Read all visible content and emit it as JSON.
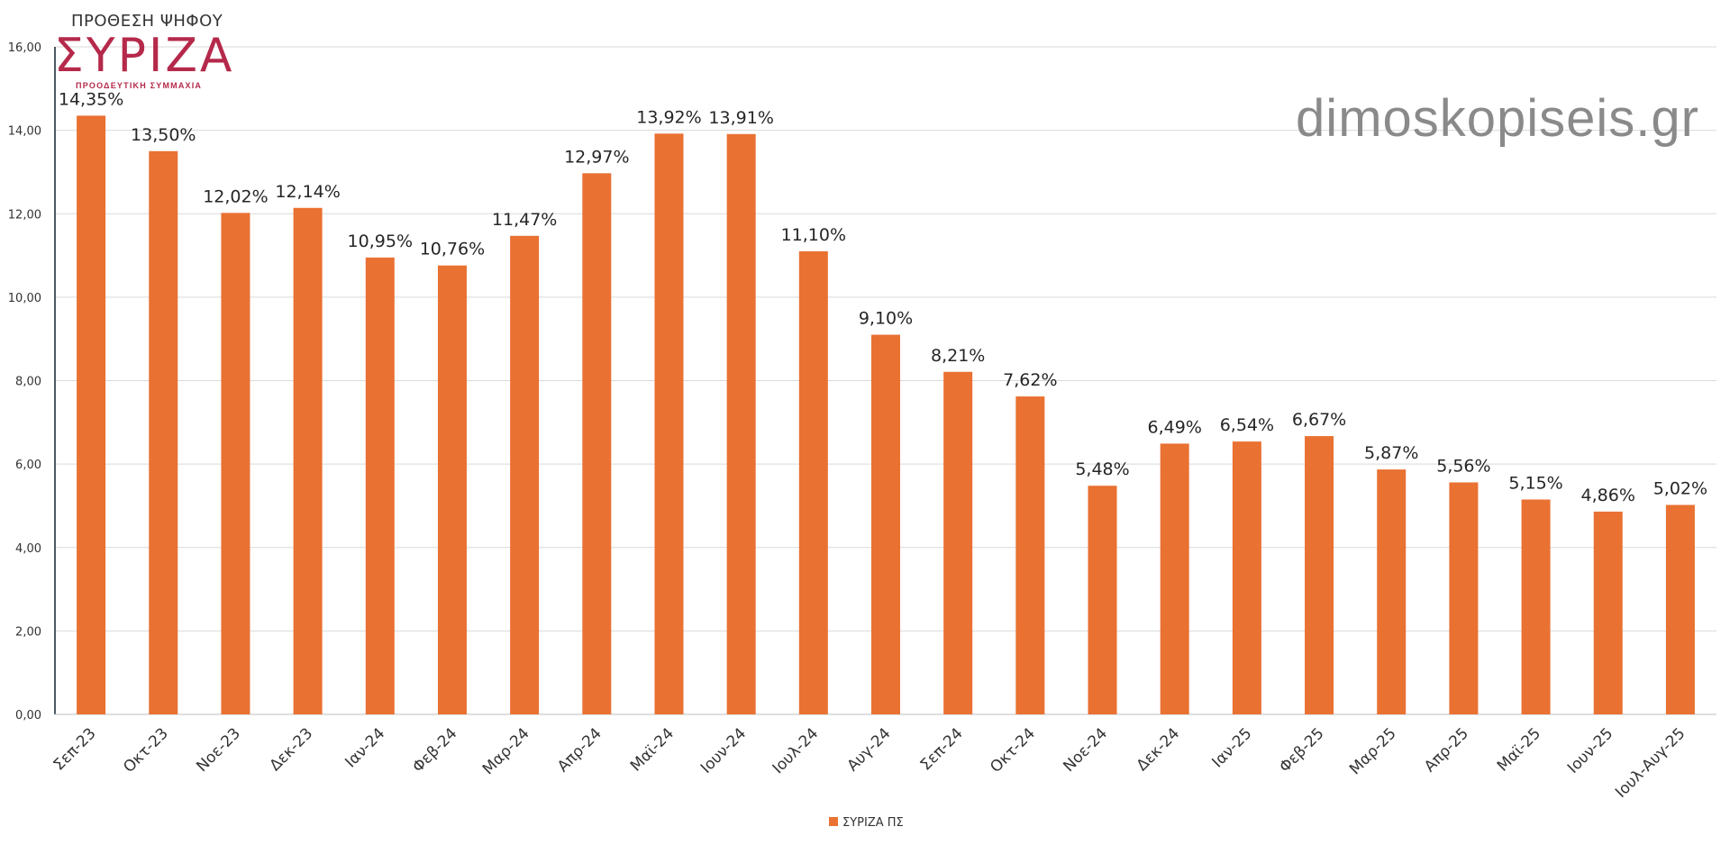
{
  "header": {
    "title": "ΠΡΟΘΕΣΗ ΨΗΦΟΥ",
    "logo_text": "ΣΥΡΙΖΑ",
    "logo_subtitle": "ΠΡΟΟΔΕΥΤΙΚΗ ΣΥΜΜΑΧΙΑ"
  },
  "watermark": "dimoskopiseis.gr",
  "colors": {
    "bar": "#E97132",
    "logo": "#B5294A",
    "grid": "#d9d9d9",
    "axis": "#4a5a66"
  },
  "chart_data": {
    "type": "bar",
    "categories": [
      "Σεπ-23",
      "Οκτ-23",
      "Νοε-23",
      "Δεκ-23",
      "Ιαν-24",
      "Φεβ-24",
      "Μαρ-24",
      "Απρ-24",
      "Μαϊ-24",
      "Ιουν-24",
      "Ιουλ-24",
      "Αυγ-24",
      "Σεπ-24",
      "Οκτ-24",
      "Νοε-24",
      "Δεκ-24",
      "Ιαν-25",
      "Φεβ-25",
      "Μαρ-25",
      "Απρ-25",
      "Μαϊ-25",
      "Ιουν-25",
      "Ιουλ-Αυγ-25"
    ],
    "series": [
      {
        "name": "ΣΥΡΙΖΑ ΠΣ",
        "values": [
          14.35,
          13.5,
          12.02,
          12.14,
          10.95,
          10.76,
          11.47,
          12.97,
          13.92,
          13.91,
          11.1,
          9.1,
          8.21,
          7.62,
          5.48,
          6.49,
          6.54,
          6.67,
          5.87,
          5.56,
          5.15,
          4.86,
          5.02
        ],
        "labels": [
          "14,35%",
          "13,50%",
          "12,02%",
          "12,14%",
          "10,95%",
          "10,76%",
          "11,47%",
          "12,97%",
          "13,92%",
          "13,91%",
          "11,10%",
          "9,10%",
          "8,21%",
          "7,62%",
          "5,48%",
          "6,49%",
          "6,54%",
          "6,67%",
          "5,87%",
          "5,56%",
          "5,15%",
          "4,86%",
          "5,02%"
        ]
      }
    ],
    "y_ticks": [
      "0,00",
      "2,00",
      "4,00",
      "6,00",
      "8,00",
      "10,00",
      "12,00",
      "14,00",
      "16,00"
    ],
    "ylim": [
      0,
      16
    ],
    "grid": true,
    "legend_position": "bottom-center"
  }
}
